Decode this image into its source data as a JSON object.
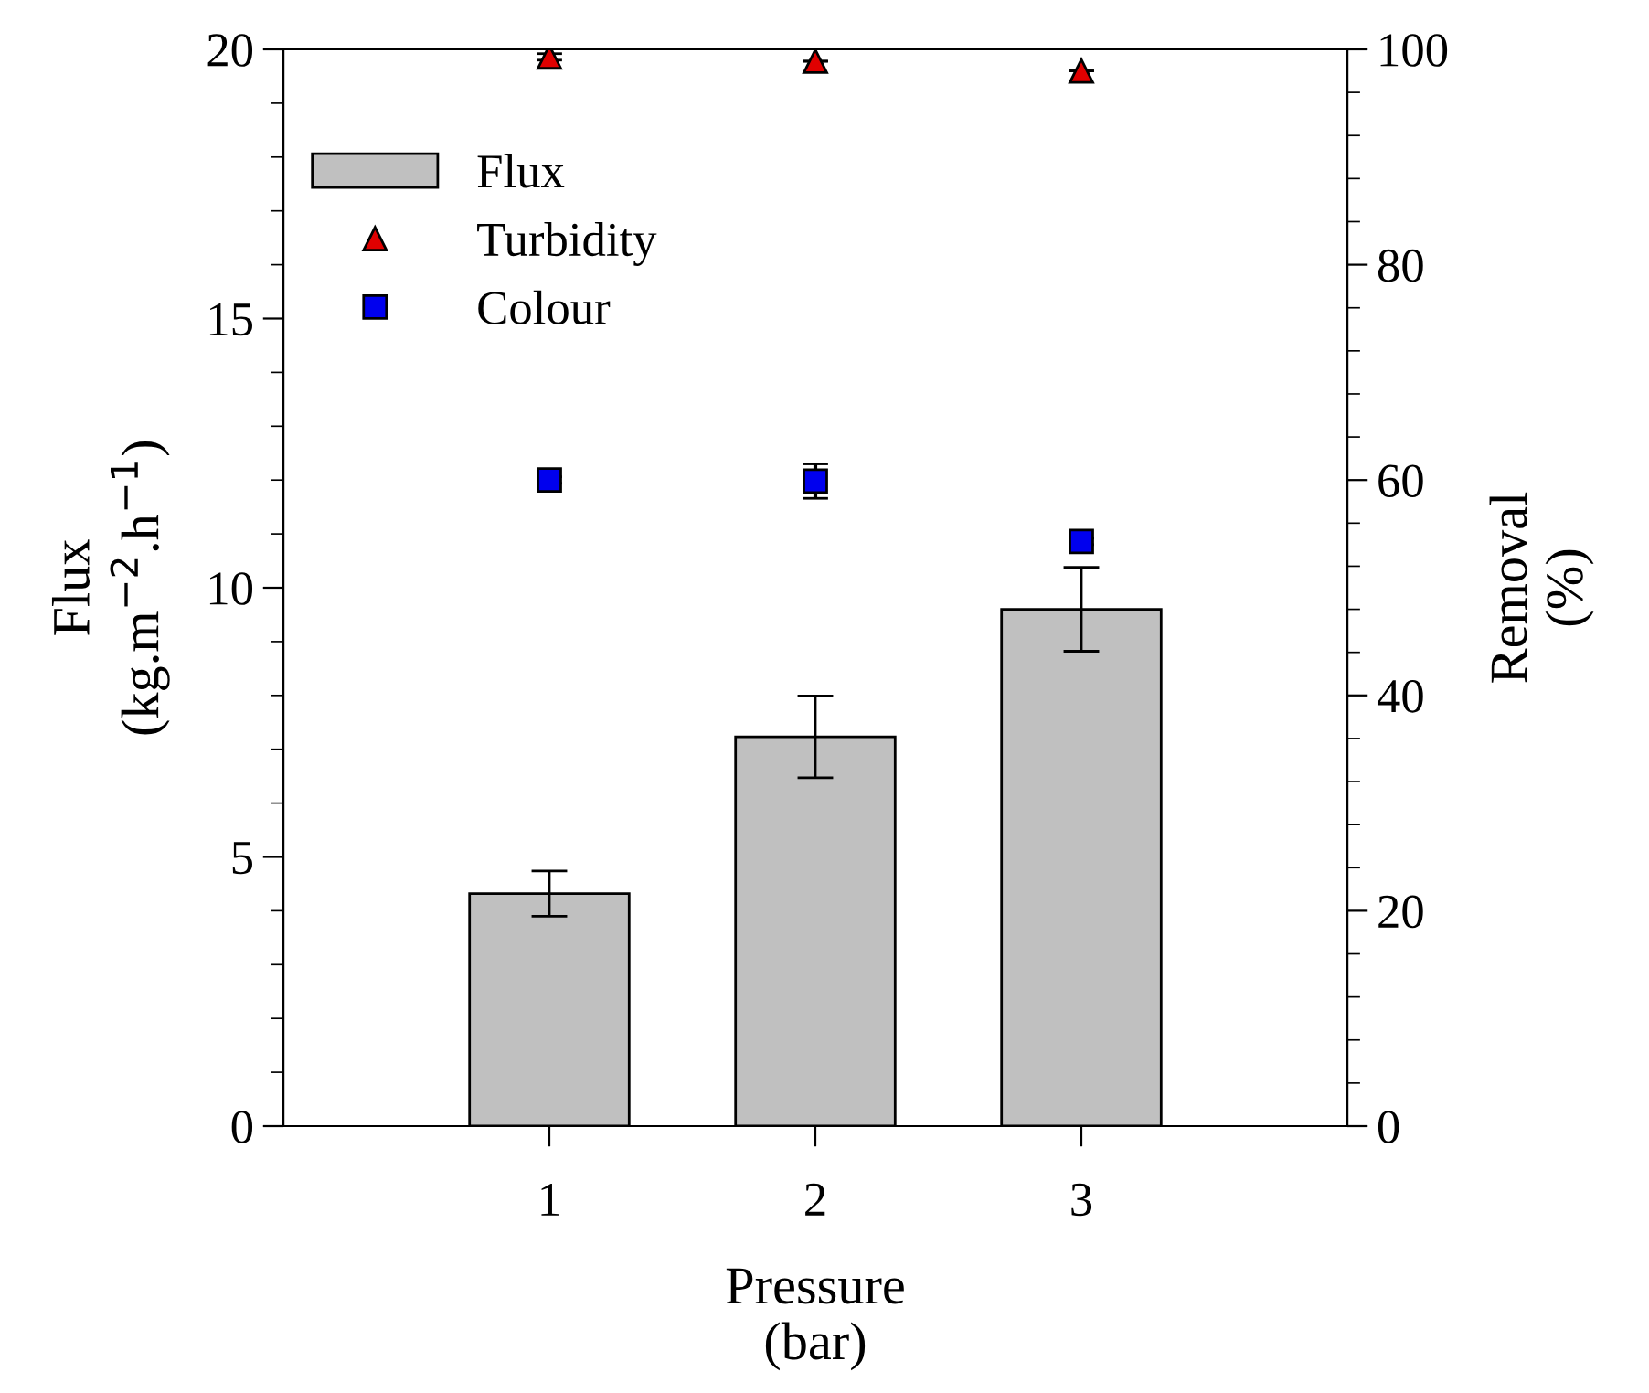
{
  "chart_data": {
    "type": "bar",
    "xlabel": "Pressure\n(bar)",
    "ylabel": "Flux\n(kg.m$^{−2}$.h$^{−1}$)",
    "y2label": "Removal\n(%)",
    "x": [
      1,
      2,
      3
    ],
    "xlim": [
      0,
      4
    ],
    "xticks": [
      1,
      2,
      3
    ],
    "ylim": [
      0,
      20
    ],
    "yticks": [
      0,
      5,
      10,
      15,
      20
    ],
    "y2lim": [
      0,
      100
    ],
    "y2ticks": [
      0,
      20,
      40,
      60,
      80,
      100
    ],
    "series": [
      {
        "name": "Flux",
        "color": "#c0c0c0",
        "values": [
          4.32,
          7.23,
          9.6
        ],
        "errors": [
          0.42,
          0.76,
          0.78
        ]
      },
      {
        "name": "Turbidity",
        "type": "scatter",
        "axis": "y2",
        "marker": "triangle",
        "color": "#e00000",
        "values": [
          99.3,
          98.9,
          98.0
        ],
        "errors": [
          0.3,
          null,
          null
        ]
      },
      {
        "name": "Colour",
        "type": "scatter",
        "axis": "y2",
        "marker": "square",
        "color": "#0000ee",
        "values": [
          60.0,
          59.9,
          54.3
        ],
        "errors": [
          0.3,
          1.6,
          0.3
        ]
      }
    ],
    "legend": "top left",
    "grid": false
  }
}
